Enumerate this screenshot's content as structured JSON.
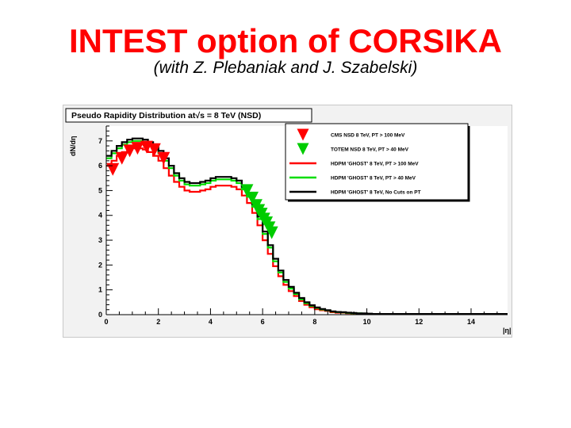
{
  "slide": {
    "title": "INTEST option of CORSIKA",
    "subtitle": "(with Z. Plebaniak and J. Szabelski)",
    "title_color": "#ff0000"
  },
  "chart_data": {
    "type": "line",
    "title": "Pseudo Rapidity Distribution at√s = 8 TeV (NSD)",
    "xlabel": "|η|",
    "ylabel": "dN/dη",
    "xlim": [
      0,
      15.4
    ],
    "ylim": [
      0,
      7.6
    ],
    "xticks": [
      0,
      2,
      4,
      6,
      8,
      10,
      12,
      14
    ],
    "yticks": [
      0,
      1,
      2,
      3,
      4,
      5,
      6,
      7
    ],
    "grid": false,
    "legend_position": "top-right",
    "series": [
      {
        "name": "CMS NSD 8 TeV, PT > 100 MeV",
        "style": "markers",
        "marker": "triangle-down",
        "color": "#ff0000",
        "x": [
          0.25,
          0.6,
          0.9,
          1.2,
          1.55,
          1.85,
          2.2
        ],
        "y": [
          5.85,
          6.3,
          6.6,
          6.7,
          6.75,
          6.65,
          6.3
        ]
      },
      {
        "name": "TOTEM NSD 8 TeV, PT > 40 MeV",
        "style": "markers",
        "marker": "triangle-down",
        "color": "#00cc00",
        "x": [
          5.4,
          5.6,
          5.75,
          5.85,
          5.95,
          6.05,
          6.15,
          6.25,
          6.35
        ],
        "y": [
          5.0,
          4.7,
          4.4,
          4.2,
          4.05,
          3.85,
          3.7,
          3.5,
          3.3
        ]
      },
      {
        "name": "HDPM 'GHOST' 8 TeV, PT > 100 MeV",
        "style": "step",
        "color": "#ff0000",
        "x": [
          0.0,
          0.2,
          0.4,
          0.6,
          0.8,
          1.0,
          1.2,
          1.4,
          1.6,
          1.8,
          2.0,
          2.2,
          2.4,
          2.6,
          2.8,
          3.0,
          3.2,
          3.4,
          3.6,
          3.8,
          4.0,
          4.2,
          4.4,
          4.6,
          4.8,
          5.0,
          5.2,
          5.4,
          5.6,
          5.8,
          6.0,
          6.2,
          6.4,
          6.6,
          6.8,
          7.0,
          7.2,
          7.4,
          7.6,
          7.8,
          8.0,
          8.2,
          8.4,
          8.6,
          8.8,
          9.0,
          9.2,
          9.4,
          9.6,
          9.8,
          10.0,
          10.2,
          15.4
        ],
        "y": [
          6.0,
          6.2,
          6.4,
          6.55,
          6.65,
          6.7,
          6.7,
          6.65,
          6.55,
          6.4,
          6.2,
          5.9,
          5.6,
          5.35,
          5.15,
          5.0,
          4.95,
          4.95,
          5.0,
          5.05,
          5.15,
          5.2,
          5.2,
          5.2,
          5.15,
          5.05,
          4.8,
          4.5,
          4.1,
          3.6,
          3.0,
          2.45,
          1.95,
          1.55,
          1.2,
          0.95,
          0.75,
          0.55,
          0.4,
          0.3,
          0.22,
          0.18,
          0.15,
          0.1,
          0.08,
          0.08,
          0.06,
          0.05,
          0.04,
          0.03,
          0.03,
          0.02,
          0.02
        ]
      },
      {
        "name": "HDPM 'GHOST' 8 TeV, PT > 40 MeV",
        "style": "step",
        "color": "#00dd00",
        "x": [
          0.0,
          0.2,
          0.4,
          0.6,
          0.8,
          1.0,
          1.2,
          1.4,
          1.6,
          1.8,
          2.0,
          2.2,
          2.4,
          2.6,
          2.8,
          3.0,
          3.2,
          3.4,
          3.6,
          3.8,
          4.0,
          4.2,
          4.4,
          4.6,
          4.8,
          5.0,
          5.2,
          5.4,
          5.6,
          5.8,
          6.0,
          6.2,
          6.4,
          6.6,
          6.8,
          7.0,
          7.2,
          7.4,
          7.6,
          7.8,
          8.0,
          8.2,
          8.4,
          8.6,
          8.8,
          9.0,
          9.2,
          9.4,
          9.6,
          9.8,
          10.0,
          10.2,
          15.4
        ],
        "y": [
          6.3,
          6.5,
          6.7,
          6.85,
          6.95,
          7.0,
          7.0,
          6.95,
          6.85,
          6.7,
          6.5,
          6.2,
          5.9,
          5.6,
          5.4,
          5.25,
          5.2,
          5.2,
          5.25,
          5.3,
          5.4,
          5.45,
          5.45,
          5.45,
          5.4,
          5.3,
          5.05,
          4.75,
          4.35,
          3.85,
          3.25,
          2.7,
          2.15,
          1.7,
          1.32,
          1.05,
          0.83,
          0.62,
          0.46,
          0.35,
          0.27,
          0.21,
          0.17,
          0.12,
          0.1,
          0.09,
          0.07,
          0.06,
          0.05,
          0.04,
          0.03,
          0.02,
          0.02
        ]
      },
      {
        "name": "HDPM 'GHOST' 8 TeV, No Cuts on PT",
        "style": "step",
        "color": "#000000",
        "x": [
          0.0,
          0.2,
          0.4,
          0.6,
          0.8,
          1.0,
          1.2,
          1.4,
          1.6,
          1.8,
          2.0,
          2.2,
          2.4,
          2.6,
          2.8,
          3.0,
          3.2,
          3.4,
          3.6,
          3.8,
          4.0,
          4.2,
          4.4,
          4.6,
          4.8,
          5.0,
          5.2,
          5.4,
          5.6,
          5.8,
          6.0,
          6.2,
          6.4,
          6.6,
          6.8,
          7.0,
          7.2,
          7.4,
          7.6,
          7.8,
          8.0,
          8.2,
          8.4,
          8.6,
          8.8,
          9.0,
          9.2,
          9.4,
          9.6,
          9.8,
          10.0,
          10.2,
          15.4
        ],
        "y": [
          6.4,
          6.6,
          6.8,
          6.95,
          7.05,
          7.1,
          7.1,
          7.05,
          6.95,
          6.8,
          6.6,
          6.3,
          6.0,
          5.7,
          5.5,
          5.35,
          5.3,
          5.3,
          5.35,
          5.4,
          5.5,
          5.55,
          5.55,
          5.55,
          5.5,
          5.4,
          5.15,
          4.85,
          4.45,
          3.95,
          3.35,
          2.8,
          2.25,
          1.78,
          1.4,
          1.12,
          0.88,
          0.67,
          0.5,
          0.38,
          0.29,
          0.23,
          0.18,
          0.13,
          0.11,
          0.1,
          0.08,
          0.07,
          0.05,
          0.05,
          0.04,
          0.03,
          0.02
        ]
      }
    ]
  }
}
